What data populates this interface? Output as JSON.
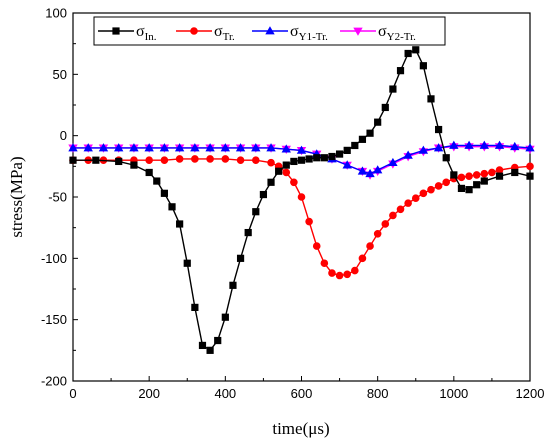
{
  "chart_data": {
    "type": "line",
    "xlabel": "time(μs)",
    "ylabel": "stress(MPa)",
    "xlim": [
      0,
      1200
    ],
    "ylim": [
      -200,
      100
    ],
    "xticks": [
      0,
      200,
      400,
      600,
      800,
      1000,
      1200
    ],
    "yticks": [
      -200,
      -150,
      -100,
      -50,
      0,
      50,
      100
    ],
    "grid": false,
    "legend_position": "top",
    "series": [
      {
        "name": "σIn.",
        "name_main": "σ",
        "name_sub": "In.",
        "color": "#000000",
        "marker": "square",
        "x": [
          0,
          60,
          120,
          160,
          200,
          220,
          240,
          260,
          280,
          300,
          320,
          340,
          360,
          380,
          400,
          420,
          440,
          460,
          480,
          500,
          520,
          540,
          560,
          580,
          600,
          620,
          640,
          660,
          680,
          700,
          720,
          740,
          760,
          780,
          800,
          820,
          840,
          860,
          880,
          900,
          920,
          940,
          960,
          980,
          1000,
          1020,
          1040,
          1060,
          1080,
          1120,
          1160,
          1200
        ],
        "y": [
          -20,
          -20,
          -21,
          -24,
          -30,
          -37,
          -47,
          -58,
          -72,
          -104,
          -140,
          -171,
          -175,
          -167,
          -148,
          -122,
          -100,
          -79,
          -62,
          -48,
          -38,
          -29,
          -24,
          -21,
          -20,
          -19,
          -18,
          -18,
          -17,
          -15,
          -12,
          -8,
          -3,
          2,
          11,
          23,
          38,
          53,
          67,
          70,
          57,
          30,
          5,
          -18,
          -32,
          -43,
          -44,
          -40,
          -37,
          -33,
          -30,
          -33
        ]
      },
      {
        "name": "σTr.",
        "name_main": "σ",
        "name_sub": "Tr.",
        "color": "#ff0000",
        "marker": "circle",
        "x": [
          0,
          40,
          80,
          120,
          160,
          200,
          240,
          280,
          320,
          360,
          400,
          440,
          480,
          520,
          540,
          560,
          580,
          600,
          620,
          640,
          660,
          680,
          700,
          720,
          740,
          760,
          780,
          800,
          820,
          840,
          860,
          880,
          900,
          920,
          940,
          960,
          980,
          1000,
          1020,
          1040,
          1060,
          1080,
          1100,
          1120,
          1160,
          1200
        ],
        "y": [
          -20,
          -20,
          -20,
          -20,
          -20,
          -20,
          -20,
          -19,
          -19,
          -19,
          -19,
          -20,
          -20,
          -22,
          -25,
          -30,
          -38,
          -50,
          -70,
          -90,
          -104,
          -112,
          -114,
          -113,
          -110,
          -100,
          -90,
          -80,
          -72,
          -65,
          -60,
          -55,
          -51,
          -47,
          -44,
          -41,
          -38,
          -35,
          -34,
          -33,
          -32,
          -31,
          -30,
          -28,
          -26,
          -25
        ]
      },
      {
        "name": "σY1-Tr.",
        "name_main": "σ",
        "name_sub": "Y1-Tr.",
        "color": "#0000ff",
        "marker": "triangle-up",
        "x": [
          0,
          40,
          80,
          120,
          160,
          200,
          240,
          280,
          320,
          360,
          400,
          440,
          480,
          520,
          560,
          600,
          640,
          680,
          720,
          760,
          780,
          800,
          840,
          880,
          920,
          960,
          1000,
          1040,
          1080,
          1120,
          1160,
          1200
        ],
        "y": [
          -10,
          -10,
          -10,
          -10,
          -10,
          -10,
          -10,
          -10,
          -10,
          -10,
          -10,
          -10,
          -10,
          -10,
          -11,
          -12,
          -15,
          -19,
          -24,
          -29,
          -31,
          -28,
          -22,
          -16,
          -12,
          -10,
          -8,
          -8,
          -8,
          -8,
          -9,
          -10
        ]
      },
      {
        "name": "σY2-Tr.",
        "name_main": "σ",
        "name_sub": "Y2-Tr.",
        "color": "#ff00ff",
        "marker": "triangle-down",
        "x": [
          0,
          40,
          80,
          120,
          160,
          200,
          240,
          280,
          320,
          360,
          400,
          440,
          480,
          520,
          560,
          600,
          640,
          680,
          720,
          760,
          780,
          800,
          840,
          880,
          920,
          960,
          1000,
          1040,
          1080,
          1120,
          1160,
          1200
        ],
        "y": [
          -10,
          -10,
          -10,
          -10,
          -10,
          -10,
          -10,
          -10,
          -10,
          -10,
          -10,
          -10,
          -10,
          -10,
          -11,
          -12,
          -15,
          -19,
          -24,
          -29,
          -32,
          -29,
          -23,
          -17,
          -13,
          -10,
          -9,
          -9,
          -9,
          -9,
          -10,
          -11
        ]
      }
    ]
  }
}
